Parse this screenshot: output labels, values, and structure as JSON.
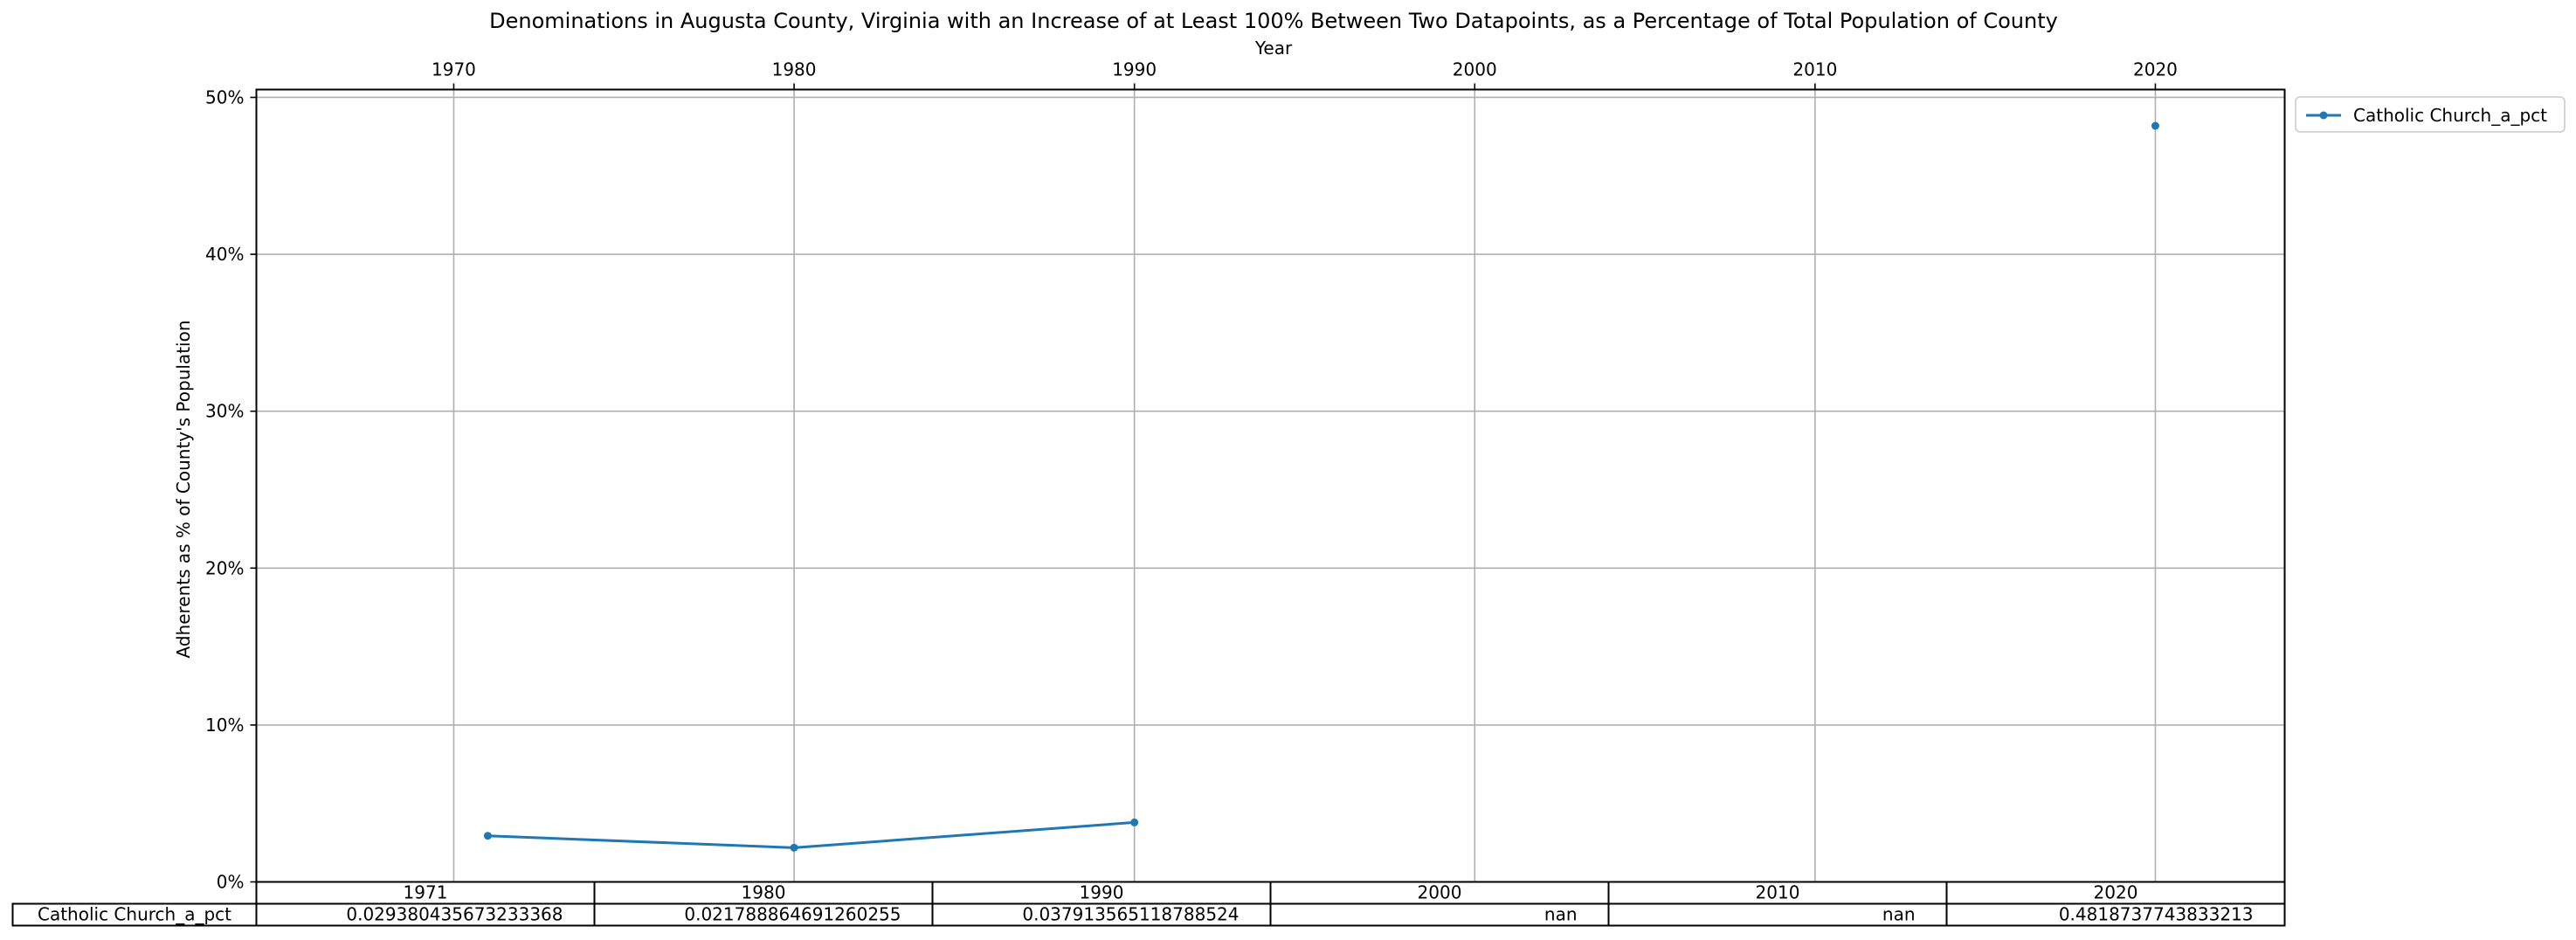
{
  "chart_data": {
    "type": "line",
    "title": "Denominations in Augusta County, Virginia with an Increase of at Least 100% Between Two Datapoints, as a Percentage of Total Population of County",
    "xlabel": "Year",
    "ylabel": "Adherents as % of County's Population",
    "x_axis_position": "top",
    "x_ticks": [
      1970,
      1980,
      1990,
      2000,
      2010,
      2020
    ],
    "xlim": [
      1964.2,
      2023.8
    ],
    "y_ticks": [
      0,
      10,
      20,
      30,
      40,
      50
    ],
    "y_tick_labels": [
      "0%",
      "10%",
      "20%",
      "30%",
      "40%",
      "50%"
    ],
    "ylim": [
      0,
      50.5
    ],
    "grid": true,
    "legend": "outside top-right",
    "x": [
      1971,
      1980,
      1990,
      2000,
      2010,
      2020
    ],
    "series": [
      {
        "name": "Catholic Church_a_pct",
        "color": "#1f77b4",
        "values": [
          2.9380435673233367,
          2.1788864691260255,
          3.7913565118788526,
          null,
          null,
          48.18737743833213
        ]
      }
    ],
    "table": {
      "columns": [
        "1971",
        "1980",
        "1990",
        "2000",
        "2010",
        "2020"
      ],
      "rows": [
        {
          "label": "Catholic Church_a_pct",
          "cells": [
            "0.029380435673233368",
            "0.021788864691260255",
            "0.037913565118788524",
            "nan",
            "nan",
            "0.4818737743833213"
          ]
        }
      ]
    }
  }
}
